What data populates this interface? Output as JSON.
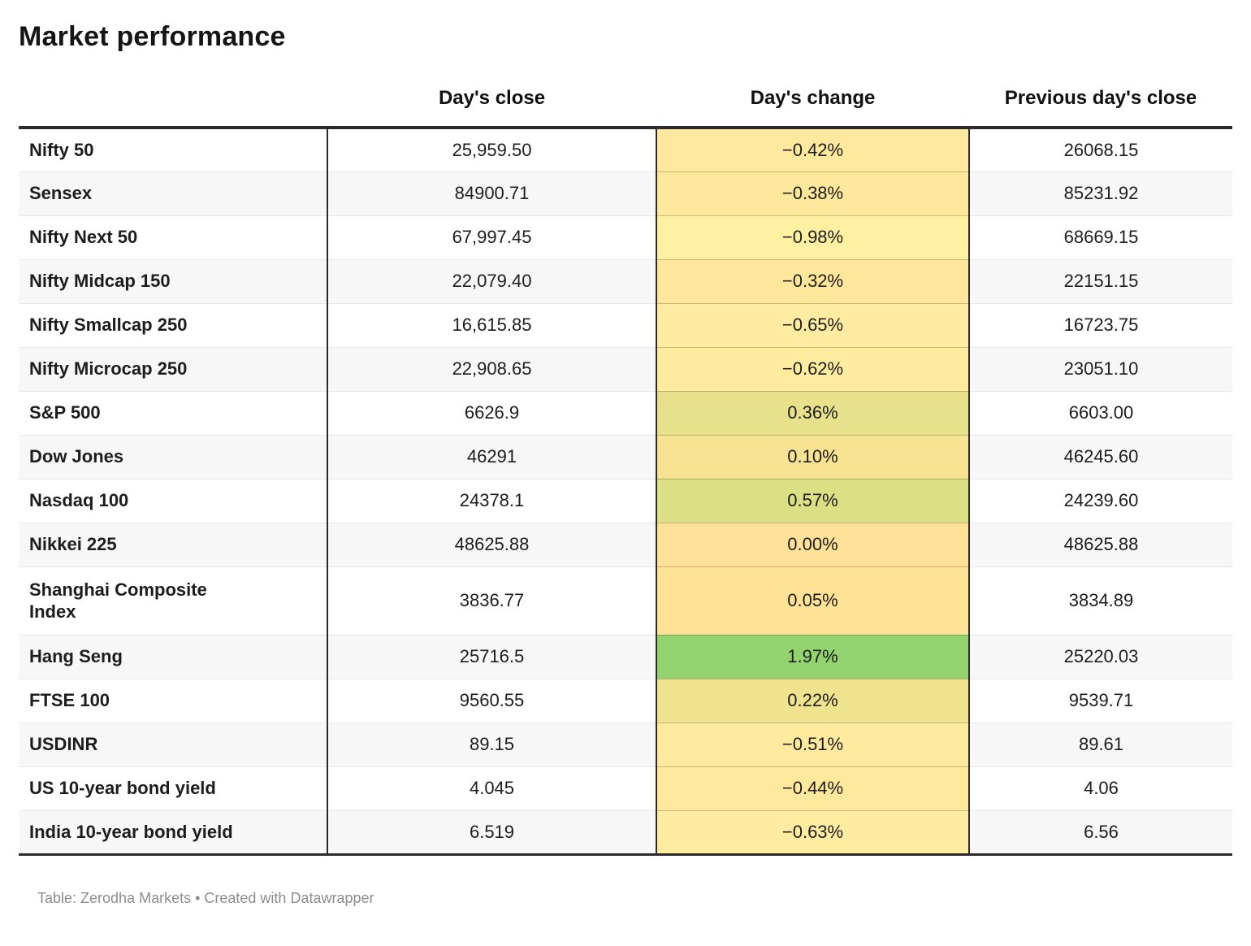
{
  "title": "Market performance",
  "columns": [
    "Day's close",
    "Day's change",
    "Previous day's close"
  ],
  "rows": [
    {
      "label": "Nifty 50",
      "close": "25,959.50",
      "change": "−0.42%",
      "prev": "26068.15",
      "change_bg": "#ffe99e",
      "wrap": false
    },
    {
      "label": "Sensex",
      "close": "84900.71",
      "change": "−0.38%",
      "prev": "85231.92",
      "change_bg": "#ffe89c",
      "wrap": false
    },
    {
      "label": "Nifty Next 50",
      "close": "67,997.45",
      "change": "−0.98%",
      "prev": "68669.15",
      "change_bg": "#fff0a2",
      "wrap": false
    },
    {
      "label": "Nifty Midcap 150",
      "close": "22,079.40",
      "change": "−0.32%",
      "prev": "22151.15",
      "change_bg": "#fee79a",
      "wrap": false
    },
    {
      "label": "Nifty Smallcap 250",
      "close": "16,615.85",
      "change": "−0.65%",
      "prev": "16723.75",
      "change_bg": "#ffeca0",
      "wrap": false
    },
    {
      "label": "Nifty Microcap 250",
      "close": "22,908.65",
      "change": "−0.62%",
      "prev": "23051.10",
      "change_bg": "#ffec9f",
      "wrap": false
    },
    {
      "label": "S&P 500",
      "close": "6626.9",
      "change": "0.36%",
      "prev": "6603.00",
      "change_bg": "#e8e18b",
      "wrap": false
    },
    {
      "label": "Dow Jones",
      "close": "46291",
      "change": "0.10%",
      "prev": "46245.60",
      "change_bg": "#f8e392",
      "wrap": false
    },
    {
      "label": "Nasdaq 100",
      "close": "24378.1",
      "change": "0.57%",
      "prev": "24239.60",
      "change_bg": "#dce085",
      "wrap": false
    },
    {
      "label": "Nikkei 225",
      "close": "48625.88",
      "change": "0.00%",
      "prev": "48625.88",
      "change_bg": "#ffe197",
      "wrap": false
    },
    {
      "label": "Shanghai Composite Index",
      "close": "3836.77",
      "change": "0.05%",
      "prev": "3834.89",
      "change_bg": "#fee296",
      "wrap": true
    },
    {
      "label": "Hang Seng",
      "close": "25716.5",
      "change": "1.97%",
      "prev": "25220.03",
      "change_bg": "#92d370",
      "wrap": false
    },
    {
      "label": "FTSE 100",
      "close": "9560.55",
      "change": "0.22%",
      "prev": "9539.71",
      "change_bg": "#f0e38e",
      "wrap": false
    },
    {
      "label": "USDINR",
      "close": "89.15",
      "change": "−0.51%",
      "prev": "89.61",
      "change_bg": "#ffea9e",
      "wrap": false
    },
    {
      "label": "US 10-year bond yield",
      "close": "4.045",
      "change": "−0.44%",
      "prev": "4.06",
      "change_bg": "#ffe99d",
      "wrap": false
    },
    {
      "label": "India 10-year bond yield",
      "close": "6.519",
      "change": "−0.63%",
      "prev": "6.56",
      "change_bg": "#ffeca0",
      "wrap": false
    }
  ],
  "footer": "Table: Zerodha Markets • Created with Datawrapper",
  "colors": {
    "rule_dark": "#2b2b2b",
    "stripe": "#f7f7f7",
    "separator": "#e8e8e8",
    "footer_text": "#8d8d8d",
    "positive_strong": "#92d370",
    "negative_pale": "#ffe99e"
  },
  "chart_data": {
    "type": "table",
    "title": "Market performance",
    "columns": [
      "Day's close",
      "Day's change",
      "Previous day's close"
    ],
    "heatmap_column": "Day's change",
    "rows": [
      [
        "Nifty 50",
        25959.5,
        -0.42,
        26068.15
      ],
      [
        "Sensex",
        84900.71,
        -0.38,
        85231.92
      ],
      [
        "Nifty Next 50",
        67997.45,
        -0.98,
        68669.15
      ],
      [
        "Nifty Midcap 150",
        22079.4,
        -0.32,
        22151.15
      ],
      [
        "Nifty Smallcap 250",
        16615.85,
        -0.65,
        16723.75
      ],
      [
        "Nifty Microcap 250",
        22908.65,
        -0.62,
        23051.1
      ],
      [
        "S&P 500",
        6626.9,
        0.36,
        6603.0
      ],
      [
        "Dow Jones",
        46291,
        0.1,
        46245.6
      ],
      [
        "Nasdaq 100",
        24378.1,
        0.57,
        24239.6
      ],
      [
        "Nikkei 225",
        48625.88,
        0.0,
        48625.88
      ],
      [
        "Shanghai Composite Index",
        3836.77,
        0.05,
        3834.89
      ],
      [
        "Hang Seng",
        25716.5,
        1.97,
        25220.03
      ],
      [
        "FTSE 100",
        9560.55,
        0.22,
        9539.71
      ],
      [
        "USDINR",
        89.15,
        -0.51,
        89.61
      ],
      [
        "US 10-year bond yield",
        4.045,
        -0.44,
        4.06
      ],
      [
        "India 10-year bond yield",
        6.519,
        -0.63,
        6.56
      ]
    ]
  }
}
